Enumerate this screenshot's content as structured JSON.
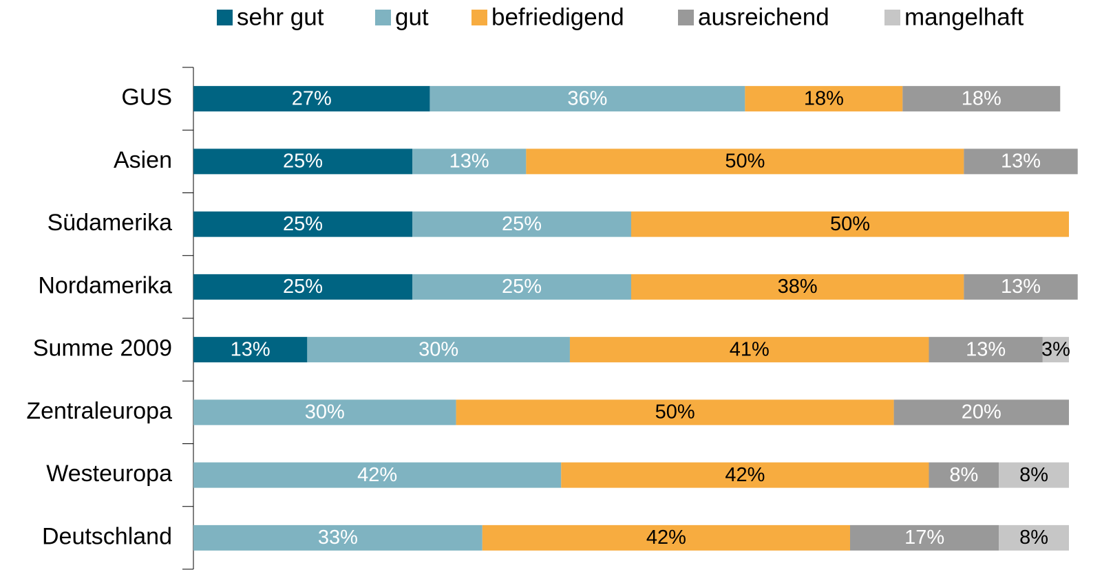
{
  "chart_data": {
    "type": "stacked-bar-horizontal",
    "categories": [
      "GUS",
      "Asien",
      "Südamerika",
      "Nordamerika",
      "Summe 2009",
      "Zentraleuropa",
      "Westeuropa",
      "Deutschland"
    ],
    "xlim": [
      0,
      100
    ],
    "legend": "top",
    "series": [
      {
        "name": "sehr gut",
        "color": "#006482",
        "label_color": "#ffffff",
        "values": [
          27,
          25,
          25,
          25,
          13,
          null,
          null,
          null
        ],
        "value_labels": [
          "27%",
          "25%",
          "25%",
          "25%",
          "13%",
          null,
          null,
          null
        ]
      },
      {
        "name": "gut",
        "color": "#7fb3c1",
        "label_color": "#ffffff",
        "values": [
          36,
          13,
          25,
          25,
          30,
          30,
          42,
          33
        ],
        "value_labels": [
          "36%",
          "13%",
          "25%",
          "25%",
          "30%",
          "30%",
          "42%",
          "33%"
        ]
      },
      {
        "name": "befriedigend",
        "color": "#f7ac40",
        "label_color": "#000000",
        "values": [
          18,
          50,
          50,
          38,
          41,
          50,
          42,
          42
        ],
        "value_labels": [
          "18%",
          "50%",
          "50%",
          "38%",
          "41%",
          "50%",
          "42%",
          "42%"
        ]
      },
      {
        "name": "ausreichend",
        "color": "#999999",
        "label_color": "#ffffff",
        "values": [
          18,
          13,
          null,
          13,
          13,
          20,
          8,
          17
        ],
        "value_labels": [
          "18%",
          "13%",
          null,
          "13%",
          "13%",
          "20%",
          "8%",
          "17%"
        ]
      },
      {
        "name": "mangelhaft",
        "color": "#c6c6c6",
        "label_color": "#000000",
        "values": [
          null,
          null,
          null,
          null,
          3,
          null,
          8,
          8
        ],
        "value_labels": [
          null,
          null,
          null,
          null,
          "3%",
          null,
          "8%",
          "8%"
        ]
      }
    ]
  }
}
